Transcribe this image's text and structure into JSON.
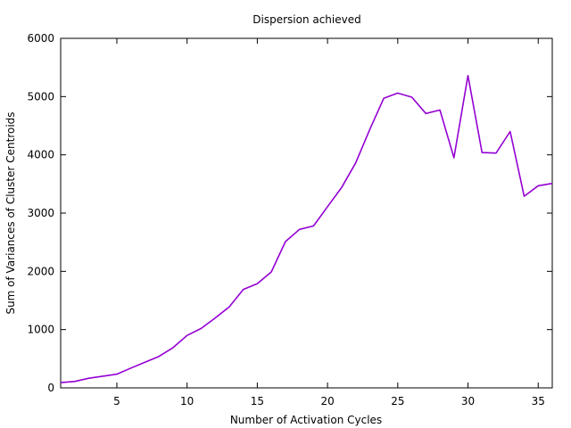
{
  "chart_data": {
    "type": "line",
    "title": "Dispersion achieved",
    "xlabel": "Number of Activation Cycles",
    "ylabel": "Sum of Variances of Cluster Centroids",
    "xlim": [
      1,
      36
    ],
    "ylim": [
      0,
      6000
    ],
    "xticks": [
      5,
      10,
      15,
      20,
      25,
      30,
      35
    ],
    "yticks": [
      0,
      1000,
      2000,
      3000,
      4000,
      5000,
      6000
    ],
    "grid": false,
    "legend": "none",
    "line_color": "#9400d3",
    "series": [
      {
        "x": [
          1,
          2,
          3,
          4,
          5,
          6,
          7,
          8,
          9,
          10,
          11,
          12,
          13,
          14,
          15,
          16,
          17,
          18,
          19,
          20,
          21,
          22,
          23,
          24,
          25,
          26,
          27,
          28,
          29,
          30,
          31,
          32,
          33,
          34,
          35,
          36
        ],
        "values": [
          90,
          110,
          165,
          200,
          235,
          340,
          440,
          540,
          690,
          900,
          1020,
          1200,
          1390,
          1690,
          1790,
          1990,
          2510,
          2720,
          2780,
          3110,
          3440,
          3860,
          4430,
          4970,
          5060,
          4990,
          4710,
          4770,
          3950,
          5360,
          4040,
          4030,
          4400,
          3290,
          3470,
          3510
        ]
      }
    ]
  }
}
